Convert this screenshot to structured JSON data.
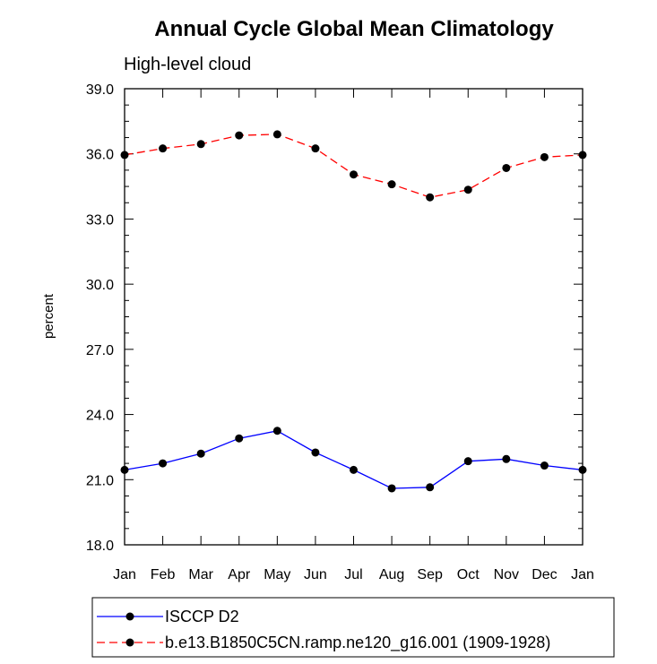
{
  "chart_data": {
    "type": "line",
    "title": "Annual Cycle Global Mean Climatology",
    "subtitle": "High-level cloud",
    "ylabel": "percent",
    "xlabel": "",
    "categories": [
      "Jan",
      "Feb",
      "Mar",
      "Apr",
      "May",
      "Jun",
      "Jul",
      "Aug",
      "Sep",
      "Oct",
      "Nov",
      "Dec",
      "Jan"
    ],
    "ylim": [
      18.0,
      39.0
    ],
    "yticks": [
      18.0,
      21.0,
      24.0,
      27.0,
      30.0,
      33.0,
      36.0,
      39.0
    ],
    "ytick_labels": [
      "18.0",
      "21.0",
      "24.0",
      "27.0",
      "30.0",
      "33.0",
      "36.0",
      "39.0"
    ],
    "grid": false,
    "legend_position": "bottom",
    "series": [
      {
        "name": "ISCCP D2",
        "values": [
          21.45,
          21.75,
          22.2,
          22.9,
          23.25,
          22.25,
          21.45,
          20.6,
          20.65,
          21.85,
          21.95,
          21.65,
          21.45
        ],
        "color": "#0000ff",
        "dash": "solid"
      },
      {
        "name": "b.e13.B1850C5CN.ramp.ne120_g16.001 (1909-1928)",
        "values": [
          35.95,
          36.25,
          36.45,
          36.85,
          36.9,
          36.25,
          35.05,
          34.6,
          34.0,
          34.35,
          35.35,
          35.85,
          35.95
        ],
        "color": "#ff0000",
        "dash": "dashed"
      }
    ]
  }
}
